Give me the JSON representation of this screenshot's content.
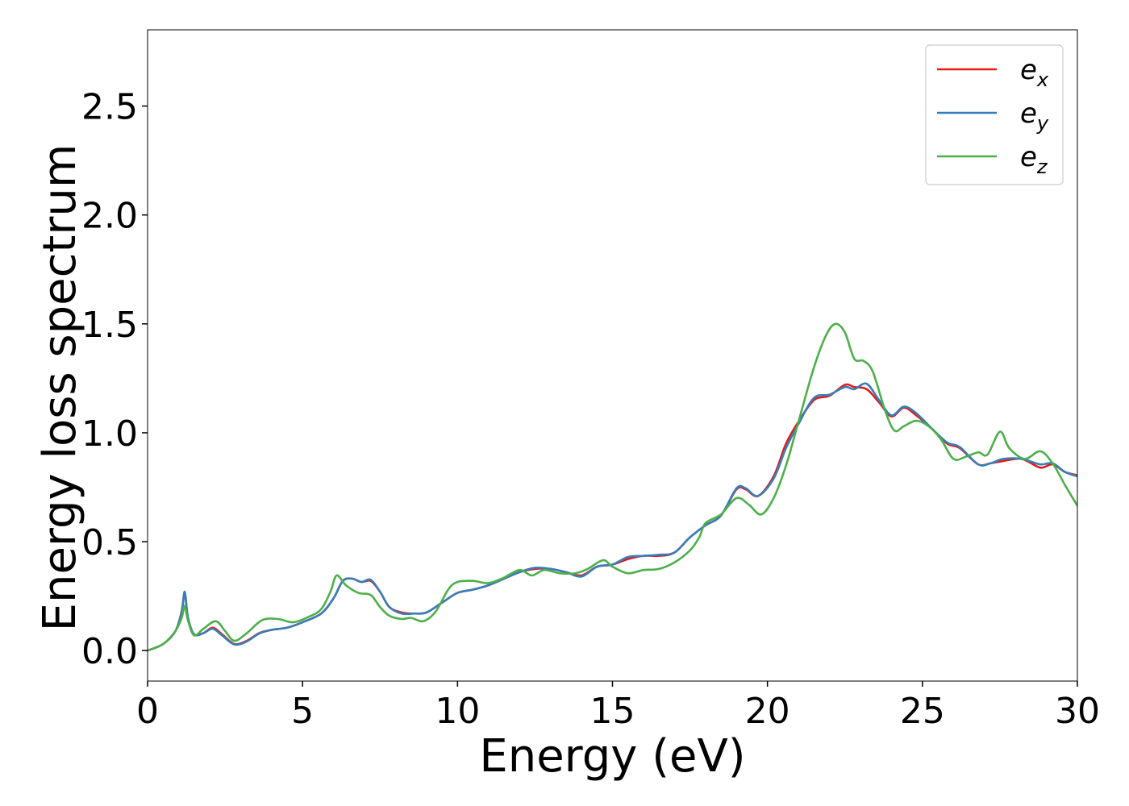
{
  "chart_data": {
    "type": "line",
    "title": "",
    "xlabel": "Energy (eV)",
    "ylabel": "Energy loss spectrum",
    "xlim": [
      0,
      30
    ],
    "ylim": [
      -0.14,
      2.85
    ],
    "xticks": [
      0,
      5,
      10,
      15,
      20,
      25,
      30
    ],
    "xtick_labels": [
      "0",
      "5",
      "10",
      "15",
      "20",
      "25",
      "30"
    ],
    "yticks": [
      0.0,
      0.5,
      1.0,
      1.5,
      2.0,
      2.5
    ],
    "ytick_labels": [
      "0.0",
      "0.5",
      "1.0",
      "1.5",
      "2.0",
      "2.5"
    ],
    "grid": false,
    "legend_position": "top-right",
    "series": [
      {
        "name": "e_x",
        "label_main": "e",
        "label_sub": "x",
        "color": "#e41a1c",
        "points": [
          [
            0,
            0.0
          ],
          [
            0.5,
            0.03
          ],
          [
            0.9,
            0.09
          ],
          [
            1.1,
            0.18
          ],
          [
            1.2,
            0.265
          ],
          [
            1.3,
            0.15
          ],
          [
            1.5,
            0.075
          ],
          [
            1.8,
            0.08
          ],
          [
            2.1,
            0.105
          ],
          [
            2.4,
            0.075
          ],
          [
            2.8,
            0.03
          ],
          [
            3.2,
            0.045
          ],
          [
            3.6,
            0.08
          ],
          [
            4.0,
            0.095
          ],
          [
            4.5,
            0.105
          ],
          [
            5.0,
            0.13
          ],
          [
            5.6,
            0.17
          ],
          [
            6.0,
            0.24
          ],
          [
            6.3,
            0.32
          ],
          [
            6.6,
            0.33
          ],
          [
            6.9,
            0.315
          ],
          [
            7.2,
            0.32
          ],
          [
            7.5,
            0.27
          ],
          [
            7.8,
            0.2
          ],
          [
            8.2,
            0.175
          ],
          [
            8.6,
            0.17
          ],
          [
            9.0,
            0.175
          ],
          [
            9.5,
            0.22
          ],
          [
            10.0,
            0.265
          ],
          [
            10.5,
            0.28
          ],
          [
            11.0,
            0.3
          ],
          [
            11.5,
            0.33
          ],
          [
            12.0,
            0.36
          ],
          [
            12.5,
            0.375
          ],
          [
            13.0,
            0.375
          ],
          [
            13.5,
            0.36
          ],
          [
            14.0,
            0.345
          ],
          [
            14.5,
            0.385
          ],
          [
            15.0,
            0.395
          ],
          [
            15.5,
            0.42
          ],
          [
            16.0,
            0.435
          ],
          [
            16.5,
            0.435
          ],
          [
            17.0,
            0.45
          ],
          [
            17.5,
            0.52
          ],
          [
            18.0,
            0.575
          ],
          [
            18.5,
            0.62
          ],
          [
            19.0,
            0.74
          ],
          [
            19.3,
            0.74
          ],
          [
            19.7,
            0.71
          ],
          [
            20.2,
            0.8
          ],
          [
            20.6,
            0.95
          ],
          [
            21.0,
            1.05
          ],
          [
            21.5,
            1.15
          ],
          [
            22.0,
            1.17
          ],
          [
            22.5,
            1.22
          ],
          [
            22.8,
            1.21
          ],
          [
            23.2,
            1.2
          ],
          [
            23.6,
            1.14
          ],
          [
            24.0,
            1.075
          ],
          [
            24.4,
            1.115
          ],
          [
            24.8,
            1.08
          ],
          [
            25.3,
            1.02
          ],
          [
            25.8,
            0.95
          ],
          [
            26.2,
            0.93
          ],
          [
            26.8,
            0.855
          ],
          [
            27.2,
            0.86
          ],
          [
            27.6,
            0.87
          ],
          [
            28.2,
            0.88
          ],
          [
            28.8,
            0.84
          ],
          [
            29.2,
            0.855
          ],
          [
            29.6,
            0.82
          ],
          [
            30.0,
            0.805
          ]
        ]
      },
      {
        "name": "e_y",
        "label_main": "e",
        "label_sub": "y",
        "color": "#377eb8",
        "points": [
          [
            0,
            0.0
          ],
          [
            0.5,
            0.03
          ],
          [
            0.9,
            0.09
          ],
          [
            1.1,
            0.18
          ],
          [
            1.2,
            0.27
          ],
          [
            1.3,
            0.155
          ],
          [
            1.5,
            0.075
          ],
          [
            1.8,
            0.08
          ],
          [
            2.1,
            0.1
          ],
          [
            2.4,
            0.07
          ],
          [
            2.8,
            0.028
          ],
          [
            3.2,
            0.042
          ],
          [
            3.6,
            0.078
          ],
          [
            4.0,
            0.095
          ],
          [
            4.5,
            0.105
          ],
          [
            5.0,
            0.13
          ],
          [
            5.6,
            0.17
          ],
          [
            6.0,
            0.24
          ],
          [
            6.3,
            0.32
          ],
          [
            6.6,
            0.33
          ],
          [
            6.9,
            0.315
          ],
          [
            7.2,
            0.325
          ],
          [
            7.5,
            0.27
          ],
          [
            7.8,
            0.2
          ],
          [
            8.2,
            0.17
          ],
          [
            8.6,
            0.17
          ],
          [
            9.0,
            0.175
          ],
          [
            9.5,
            0.22
          ],
          [
            10.0,
            0.265
          ],
          [
            10.5,
            0.28
          ],
          [
            11.0,
            0.3
          ],
          [
            11.5,
            0.33
          ],
          [
            12.0,
            0.36
          ],
          [
            12.5,
            0.38
          ],
          [
            13.0,
            0.375
          ],
          [
            13.5,
            0.36
          ],
          [
            14.0,
            0.34
          ],
          [
            14.5,
            0.385
          ],
          [
            15.0,
            0.395
          ],
          [
            15.5,
            0.43
          ],
          [
            16.0,
            0.435
          ],
          [
            16.5,
            0.44
          ],
          [
            17.0,
            0.45
          ],
          [
            17.5,
            0.52
          ],
          [
            18.0,
            0.575
          ],
          [
            18.5,
            0.62
          ],
          [
            19.0,
            0.745
          ],
          [
            19.3,
            0.745
          ],
          [
            19.7,
            0.71
          ],
          [
            20.2,
            0.79
          ],
          [
            20.6,
            0.93
          ],
          [
            21.0,
            1.04
          ],
          [
            21.5,
            1.16
          ],
          [
            22.0,
            1.175
          ],
          [
            22.5,
            1.21
          ],
          [
            22.8,
            1.2
          ],
          [
            23.2,
            1.225
          ],
          [
            23.6,
            1.15
          ],
          [
            24.0,
            1.08
          ],
          [
            24.4,
            1.12
          ],
          [
            24.8,
            1.09
          ],
          [
            25.3,
            1.02
          ],
          [
            25.8,
            0.955
          ],
          [
            26.2,
            0.935
          ],
          [
            26.8,
            0.855
          ],
          [
            27.2,
            0.86
          ],
          [
            27.6,
            0.88
          ],
          [
            28.2,
            0.88
          ],
          [
            28.8,
            0.855
          ],
          [
            29.2,
            0.86
          ],
          [
            29.6,
            0.82
          ],
          [
            30.0,
            0.8
          ]
        ]
      },
      {
        "name": "e_z",
        "label_main": "e",
        "label_sub": "z",
        "color": "#4daf4a",
        "points": [
          [
            0,
            0.0
          ],
          [
            0.5,
            0.03
          ],
          [
            0.9,
            0.09
          ],
          [
            1.1,
            0.15
          ],
          [
            1.2,
            0.205
          ],
          [
            1.3,
            0.14
          ],
          [
            1.5,
            0.07
          ],
          [
            1.8,
            0.1
          ],
          [
            2.2,
            0.135
          ],
          [
            2.5,
            0.09
          ],
          [
            2.8,
            0.045
          ],
          [
            3.2,
            0.08
          ],
          [
            3.7,
            0.14
          ],
          [
            4.2,
            0.145
          ],
          [
            4.7,
            0.13
          ],
          [
            5.2,
            0.155
          ],
          [
            5.6,
            0.19
          ],
          [
            5.9,
            0.27
          ],
          [
            6.1,
            0.345
          ],
          [
            6.4,
            0.3
          ],
          [
            6.8,
            0.265
          ],
          [
            7.2,
            0.255
          ],
          [
            7.5,
            0.2
          ],
          [
            7.8,
            0.16
          ],
          [
            8.2,
            0.145
          ],
          [
            8.5,
            0.15
          ],
          [
            8.9,
            0.135
          ],
          [
            9.3,
            0.18
          ],
          [
            9.7,
            0.28
          ],
          [
            10.0,
            0.315
          ],
          [
            10.5,
            0.32
          ],
          [
            11.0,
            0.31
          ],
          [
            11.5,
            0.335
          ],
          [
            12.0,
            0.37
          ],
          [
            12.4,
            0.345
          ],
          [
            12.8,
            0.37
          ],
          [
            13.3,
            0.355
          ],
          [
            13.8,
            0.355
          ],
          [
            14.2,
            0.375
          ],
          [
            14.7,
            0.415
          ],
          [
            15.0,
            0.385
          ],
          [
            15.5,
            0.355
          ],
          [
            16.0,
            0.37
          ],
          [
            16.5,
            0.375
          ],
          [
            17.0,
            0.405
          ],
          [
            17.5,
            0.46
          ],
          [
            17.8,
            0.52
          ],
          [
            18.0,
            0.585
          ],
          [
            18.5,
            0.625
          ],
          [
            19.0,
            0.7
          ],
          [
            19.4,
            0.67
          ],
          [
            19.8,
            0.625
          ],
          [
            20.2,
            0.7
          ],
          [
            20.6,
            0.85
          ],
          [
            21.0,
            1.05
          ],
          [
            21.5,
            1.3
          ],
          [
            21.9,
            1.45
          ],
          [
            22.2,
            1.5
          ],
          [
            22.5,
            1.46
          ],
          [
            22.8,
            1.34
          ],
          [
            23.1,
            1.33
          ],
          [
            23.4,
            1.28
          ],
          [
            23.8,
            1.1
          ],
          [
            24.1,
            1.01
          ],
          [
            24.4,
            1.03
          ],
          [
            24.8,
            1.055
          ],
          [
            25.2,
            1.03
          ],
          [
            25.6,
            0.97
          ],
          [
            26.0,
            0.88
          ],
          [
            26.4,
            0.89
          ],
          [
            26.8,
            0.91
          ],
          [
            27.1,
            0.9
          ],
          [
            27.5,
            1.005
          ],
          [
            27.8,
            0.93
          ],
          [
            28.3,
            0.88
          ],
          [
            28.8,
            0.915
          ],
          [
            29.2,
            0.86
          ],
          [
            29.6,
            0.76
          ],
          [
            30.0,
            0.665
          ]
        ]
      }
    ]
  }
}
